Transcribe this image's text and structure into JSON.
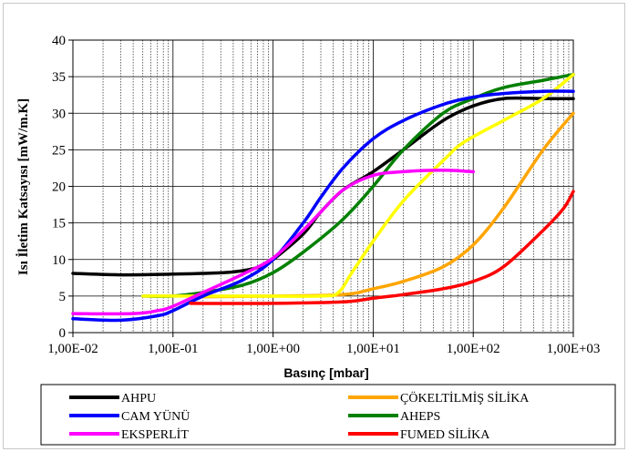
{
  "chart_data": {
    "type": "line",
    "xlabel": "Basınç [mbar]",
    "ylabel": "Isı İletim Katsayısı [mW/m.K]",
    "xscale": "log",
    "xlim": [
      0.01,
      1000
    ],
    "ylim": [
      0,
      40
    ],
    "xticks": [
      "1,00E-02",
      "1,00E-01",
      "1,00E+00",
      "1,00E+01",
      "1,00E+02",
      "1,00E+03"
    ],
    "yticks": [
      "0",
      "5",
      "10",
      "15",
      "20",
      "25",
      "30",
      "35",
      "40"
    ],
    "grid": true,
    "legend_position": "bottom",
    "series": [
      {
        "name": "AHPU",
        "color": "#000000",
        "points": [
          [
            0.01,
            8.1
          ],
          [
            0.03,
            7.9
          ],
          [
            0.1,
            8.0
          ],
          [
            0.2,
            8.1
          ],
          [
            0.4,
            8.3
          ],
          [
            0.7,
            8.9
          ],
          [
            1,
            10
          ],
          [
            2,
            13.5
          ],
          [
            3,
            16.5
          ],
          [
            5,
            19.5
          ],
          [
            10,
            22
          ],
          [
            20,
            25
          ],
          [
            50,
            29
          ],
          [
            100,
            31
          ],
          [
            200,
            32
          ],
          [
            500,
            32
          ],
          [
            1000,
            32
          ]
        ]
      },
      {
        "name": "ÇÖKELTİLMİŞ SİLİKA",
        "color": "#ffa500",
        "points": [
          [
            0.15,
            4.9
          ],
          [
            1,
            5.0
          ],
          [
            5,
            5.2
          ],
          [
            10,
            6
          ],
          [
            20,
            7
          ],
          [
            50,
            9
          ],
          [
            100,
            12
          ],
          [
            200,
            17
          ],
          [
            500,
            25
          ],
          [
            1000,
            30
          ]
        ]
      },
      {
        "name": "CAM YÜNÜ",
        "color": "#0000ff",
        "points": [
          [
            0.01,
            1.9
          ],
          [
            0.03,
            1.7
          ],
          [
            0.07,
            2.3
          ],
          [
            0.1,
            3
          ],
          [
            0.2,
            5
          ],
          [
            0.5,
            7.2
          ],
          [
            1,
            10
          ],
          [
            2,
            15
          ],
          [
            3,
            18.5
          ],
          [
            5,
            22.5
          ],
          [
            10,
            26.5
          ],
          [
            20,
            29
          ],
          [
            50,
            31.2
          ],
          [
            100,
            32.2
          ],
          [
            200,
            32.7
          ],
          [
            500,
            33
          ],
          [
            1000,
            33
          ]
        ]
      },
      {
        "name": "AHEPS",
        "color": "#008000",
        "points": [
          [
            0.05,
            5.0
          ],
          [
            0.1,
            5.0
          ],
          [
            0.2,
            5.5
          ],
          [
            0.5,
            6.5
          ],
          [
            1,
            8.2
          ],
          [
            2,
            11
          ],
          [
            5,
            15.5
          ],
          [
            10,
            20
          ],
          [
            20,
            25
          ],
          [
            50,
            30
          ],
          [
            100,
            32
          ],
          [
            200,
            33.5
          ],
          [
            500,
            34.5
          ],
          [
            1000,
            35.3
          ]
        ]
      },
      {
        "name": "EKSPERLİT",
        "color": "#ff00ff",
        "points": [
          [
            0.01,
            2.6
          ],
          [
            0.04,
            2.6
          ],
          [
            0.07,
            3
          ],
          [
            0.1,
            3.6
          ],
          [
            0.2,
            5.5
          ],
          [
            0.5,
            8
          ],
          [
            1,
            10.2
          ],
          [
            2,
            14
          ],
          [
            3,
            16.5
          ],
          [
            5,
            19.5
          ],
          [
            10,
            21.5
          ],
          [
            20,
            22
          ],
          [
            50,
            22.2
          ],
          [
            100,
            22
          ]
        ]
      },
      {
        "name": "FUMED SİLİKA",
        "color": "#ff0000",
        "points": [
          [
            0.15,
            4.0
          ],
          [
            1,
            4.0
          ],
          [
            5,
            4.2
          ],
          [
            10,
            4.7
          ],
          [
            20,
            5.2
          ],
          [
            50,
            6
          ],
          [
            100,
            7
          ],
          [
            200,
            9
          ],
          [
            500,
            14
          ],
          [
            800,
            17
          ],
          [
            1000,
            19.3
          ]
        ]
      }
    ],
    "extra_series": [
      {
        "name": "",
        "color": "#ffff00",
        "points": [
          [
            0.05,
            5.0
          ],
          [
            0.5,
            5.0
          ],
          [
            3,
            5.0
          ],
          [
            4.5,
            5.5
          ],
          [
            6,
            8
          ],
          [
            10,
            12.5
          ],
          [
            20,
            18
          ],
          [
            50,
            23.5
          ],
          [
            80,
            26
          ],
          [
            200,
            29
          ],
          [
            500,
            32
          ],
          [
            1000,
            35.3
          ]
        ]
      }
    ]
  }
}
